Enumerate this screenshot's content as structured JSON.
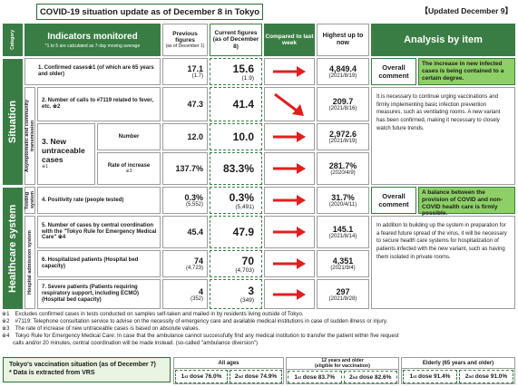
{
  "title": "COVID-19 situation update as of December 8 in Tokyo",
  "updated": "【Updated December 9】",
  "header": {
    "category": "Category",
    "indicators": "Indicators monitored",
    "indicators_note": "*1 to 5 are calculated as 7-day moving average",
    "previous": "Previous figures",
    "previous_sub": "(as of December 1)",
    "current": "Current figures (as of December 8)",
    "compared": "Compared to last week",
    "highest": "Highest up to now",
    "analysis": "Analysis by item"
  },
  "categories": {
    "situation": "Situation",
    "healthcare": "Healthcare system",
    "asymptomatic": "Asymptomatic and community transmission",
    "testing": "Testing system",
    "hospital": "Hospital admission system"
  },
  "rows": [
    {
      "label": "1. Confirmed cases※1 (of which are 65 years and older)",
      "prev": "17.1",
      "prev_sub": "(1.7)",
      "cur": "15.6",
      "cur_sub": "(1.9)",
      "trend": "right",
      "high": "4,849.4",
      "high_date": "(2021/8/19)"
    },
    {
      "label": "2. Number of calls to #7119 related to fever, etc. ※2",
      "prev": "47.3",
      "prev_sub": "",
      "cur": "41.4",
      "cur_sub": "",
      "trend": "down",
      "high": "209.7",
      "high_date": "(2021/8/16)"
    },
    {
      "label": "3. New untraceable cases",
      "label_note": "※1",
      "sub": "Number",
      "prev": "12.0",
      "prev_sub": "",
      "cur": "10.0",
      "cur_sub": "",
      "trend": "right",
      "high": "2,972.6",
      "high_date": "(2021/8/19)"
    },
    {
      "sub": "Rate of increase",
      "sub_note": "※3",
      "prev": "137.7%",
      "prev_sub": "",
      "cur": "83.3%",
      "cur_sub": "",
      "trend": "right",
      "high": "281.7%",
      "high_date": "(2020/4/9)"
    },
    {
      "label": "4. Positivity rate (people tested)",
      "prev": "0.3%",
      "prev_sub": "(5,552)",
      "cur": "0.3%",
      "cur_sub": "(5,491)",
      "trend": "right",
      "high": "31.7%",
      "high_date": "(2020/4/11)"
    },
    {
      "label": "5. Number of cases by central coordination with the \"Tokyo Rule for Emergency Medical Care\" ※4",
      "prev": "45.4",
      "prev_sub": "",
      "cur": "47.9",
      "cur_sub": "",
      "trend": "right",
      "high": "145.1",
      "high_date": "(2021/8/14)"
    },
    {
      "label": "6. Hospitalized patients (Hospital bed capacity)",
      "prev": "74",
      "prev_sub": "(4,723)",
      "cur": "70",
      "cur_sub": "(4,703)",
      "trend": "right",
      "high": "4,351",
      "high_date": "(2021/9/4)"
    },
    {
      "label": "7. Severe patients (Patients requiring respiratory support, including ECMO) (Hospital bed capacity)",
      "prev": "4",
      "prev_sub": "(352)",
      "cur": "3",
      "cur_sub": "(349)",
      "trend": "right",
      "high": "297",
      "high_date": "(2021/8/28)"
    }
  ],
  "analysis": {
    "situation_overall": "Overall comment",
    "situation_note": "The increase in new infected cases is being contained to a certain degree.",
    "situation_text": "It is necessary to continue urging vaccinations and firmly implementing basic infection prevention measures, such as ventilating rooms. A new variant has been confirmed, making it necessary to closely watch future trends.",
    "healthcare_overall": "Overall comment",
    "healthcare_note": "A balance between the provision of COVID and non-COVID health care is firmly possible.",
    "healthcare_text": "In addition to building up the system in preparation for a feared future spread of the virus, it will be necessary to secure health care systems for hospitalization of patients infected with the new variant, such as having them isolated in private rooms."
  },
  "notes": [
    "※1　Excludes confirmed cases in tests conducted on samples self-taken and mailed in by residents living outside of Tokyo.",
    "※2　#7119: Telephone consultation service to advise on the necessity of emergency care and available medical institutions in case of sudden illness or injury.",
    "※3　The rate of increase of new untraceable cases is based on absolute values.",
    "※4　Tokyo Rule for Emergency Medical Care: In case that the ambulance cannot successfully find any medical institution to transfer the patient within five request",
    "　　calls and/or 20 minutes,  central coordination will be made instead. (so-called \"ambulance diversion\")"
  ],
  "vaccination": {
    "title": "Tokyo's vaccination situation (as of December 7)",
    "source": "* Data is extracted from VRS",
    "groups": [
      {
        "name": "All ages",
        "name_sub": "",
        "first": "76.0%",
        "second": "74.9%"
      },
      {
        "name": "12 years and older",
        "name_sub": "(eligible for vaccination)",
        "first": "83.7%",
        "second": "82.6%"
      },
      {
        "name": "Elderly (65 years and older)",
        "name_sub": "",
        "first": "91.4%",
        "second": "91.0%"
      }
    ],
    "first_label": "1",
    "first_sup": "st",
    "second_label": "2",
    "second_sup": "nd",
    "dose_word": " dose "
  },
  "colors": {
    "accent": "#3a7d44",
    "highlight": "#8ed067",
    "arrow": "#e02020"
  }
}
